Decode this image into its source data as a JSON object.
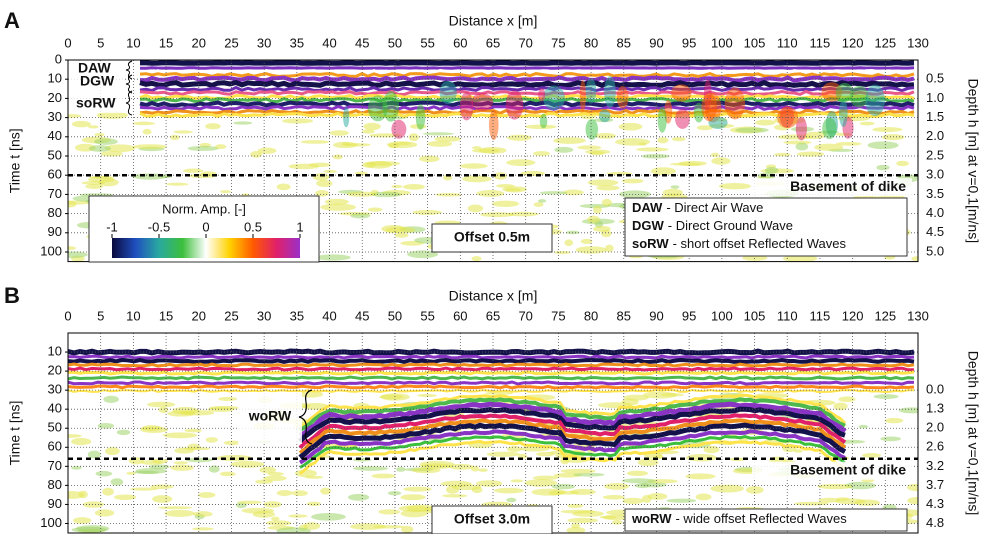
{
  "chart_data": [
    {
      "type": "radargram",
      "panel": "A",
      "xlabel": "Distance  x [m]",
      "ylabel": "Time  t [ns]",
      "y2label": "Depth  h [m] at v=0,1[m/ns]",
      "xlim": [
        0,
        130
      ],
      "xticks": [
        0,
        5,
        10,
        15,
        20,
        25,
        30,
        35,
        40,
        45,
        50,
        55,
        60,
        65,
        70,
        75,
        80,
        85,
        90,
        95,
        100,
        105,
        110,
        115,
        120,
        125,
        130
      ],
      "ylim": [
        0,
        105
      ],
      "yticks": [
        0,
        10,
        20,
        30,
        40,
        50,
        60,
        70,
        80,
        90,
        100
      ],
      "y2tick_labels": [
        null,
        "0.5",
        "1.0",
        "1.5",
        "2.0",
        "2.5",
        "3.0",
        "3.5",
        "4.0",
        "4.5",
        "5.0"
      ],
      "grid": true,
      "basement": {
        "label": "Basement of dike",
        "t": 60
      },
      "wave_labels": [
        "DAW",
        "DGW",
        "soRW"
      ],
      "offset_label": "Offset 0.5m",
      "legend": [
        {
          "abbr": "DAW",
          "text": "- Direct Air Wave"
        },
        {
          "abbr": "DGW",
          "text": "- Direct Ground Wave"
        },
        {
          "abbr": "soRW",
          "text": "- short offset Reflected Waves"
        }
      ],
      "colorbar": {
        "title": "Norm. Amp. [-]",
        "ticks": [
          -1,
          -0.5,
          0,
          0.5,
          1
        ],
        "lim": [
          -1,
          1
        ],
        "colors": [
          "#0a0a3c",
          "#1f4fbf",
          "#2aa9a0",
          "#3cbf3c",
          "#ffffff",
          "#ffd200",
          "#ff5a00",
          "#e0206a",
          "#9b30c8"
        ]
      }
    },
    {
      "type": "radargram",
      "panel": "B",
      "xlabel": "Distance  x [m]",
      "ylabel": "Time  t [ns]",
      "y2label": "Depth  h [m] at v=0,1[m/ns]",
      "xlim": [
        0,
        130
      ],
      "xticks": [
        0,
        5,
        10,
        15,
        20,
        25,
        30,
        35,
        40,
        45,
        50,
        55,
        60,
        65,
        70,
        75,
        80,
        85,
        90,
        95,
        100,
        105,
        110,
        115,
        120,
        125,
        130
      ],
      "ylim": [
        0,
        105
      ],
      "yticks": [
        10,
        20,
        30,
        40,
        50,
        60,
        70,
        80,
        90,
        100
      ],
      "y2tick_labels": [
        null,
        null,
        "0.0",
        "1.3",
        "2.0",
        "2.6",
        "3.2",
        "3.7",
        "4.3",
        "4.8"
      ],
      "grid": true,
      "basement": {
        "label": "Basement of dike",
        "t": 66
      },
      "wave_labels": [
        "woRW"
      ],
      "offset_label": "Offset 3.0m",
      "legend": [
        {
          "abbr": "woRW",
          "text": "- wide offset Reflected Waves"
        }
      ]
    }
  ]
}
